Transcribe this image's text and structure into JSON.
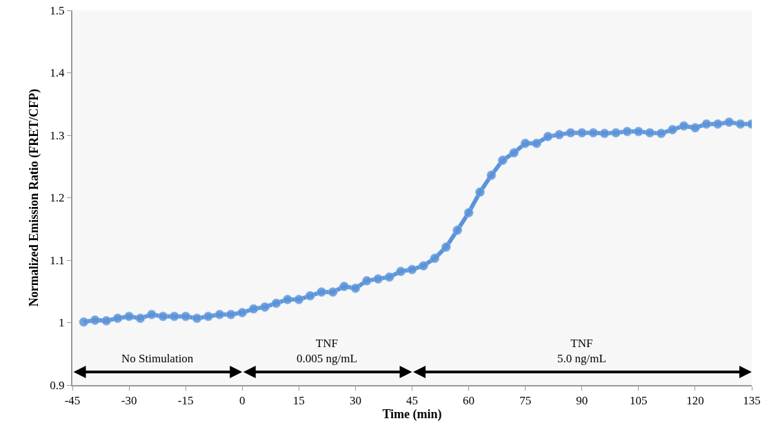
{
  "chart_data": {
    "type": "line",
    "xlabel": "Time (min)",
    "ylabel": "Normalized Emission Ratio (FRET/CFP)",
    "x": [
      -42,
      -39,
      -36,
      -33,
      -30,
      -27,
      -24,
      -21,
      -18,
      -15,
      -12,
      -9,
      -6,
      -3,
      0,
      3,
      6,
      9,
      12,
      15,
      18,
      21,
      24,
      27,
      30,
      33,
      36,
      39,
      42,
      45,
      48,
      51,
      54,
      57,
      60,
      63,
      66,
      69,
      72,
      75,
      78,
      81,
      84,
      87,
      90,
      93,
      96,
      99,
      102,
      105,
      108,
      111,
      114,
      117,
      120,
      123,
      126,
      129,
      132,
      135
    ],
    "series": [
      {
        "color": "#5b93d9",
        "values": [
          1.001,
          1.004,
          1.003,
          1.007,
          1.01,
          1.007,
          1.013,
          1.01,
          1.01,
          1.01,
          1.007,
          1.01,
          1.013,
          1.013,
          1.016,
          1.022,
          1.025,
          1.031,
          1.037,
          1.037,
          1.043,
          1.049,
          1.049,
          1.058,
          1.055,
          1.067,
          1.07,
          1.073,
          1.082,
          1.085,
          1.091,
          1.103,
          1.121,
          1.148,
          1.176,
          1.209,
          1.236,
          1.26,
          1.272,
          1.287,
          1.287,
          1.298,
          1.301,
          1.304,
          1.304,
          1.304,
          1.303,
          1.304,
          1.306,
          1.306,
          1.304,
          1.303,
          1.309,
          1.315,
          1.312,
          1.318,
          1.318,
          1.321,
          1.318,
          1.318
        ]
      }
    ],
    "xlim": [
      -45,
      135
    ],
    "xticks": [
      -45,
      -30,
      -15,
      0,
      15,
      30,
      45,
      60,
      75,
      90,
      105,
      120,
      135
    ],
    "ylim": [
      0.9,
      1.5
    ],
    "yticks": [
      0.9,
      1,
      1.1,
      1.2,
      1.3,
      1.4,
      1.5
    ],
    "bands": [
      {
        "axis": "x",
        "from": -45,
        "to": 0,
        "label": "No Stimulation",
        "color": "#000000"
      },
      {
        "axis": "x",
        "from": 0,
        "to": 45,
        "label": "TNF\n0.005 ng/mL",
        "color": "#000000"
      },
      {
        "axis": "x",
        "from": 45,
        "to": 135,
        "label": "TNF\n5.0 ng/mL",
        "color": "#000000"
      }
    ],
    "grid": false,
    "legend": false,
    "marker": "circle",
    "line_style": "solid"
  }
}
